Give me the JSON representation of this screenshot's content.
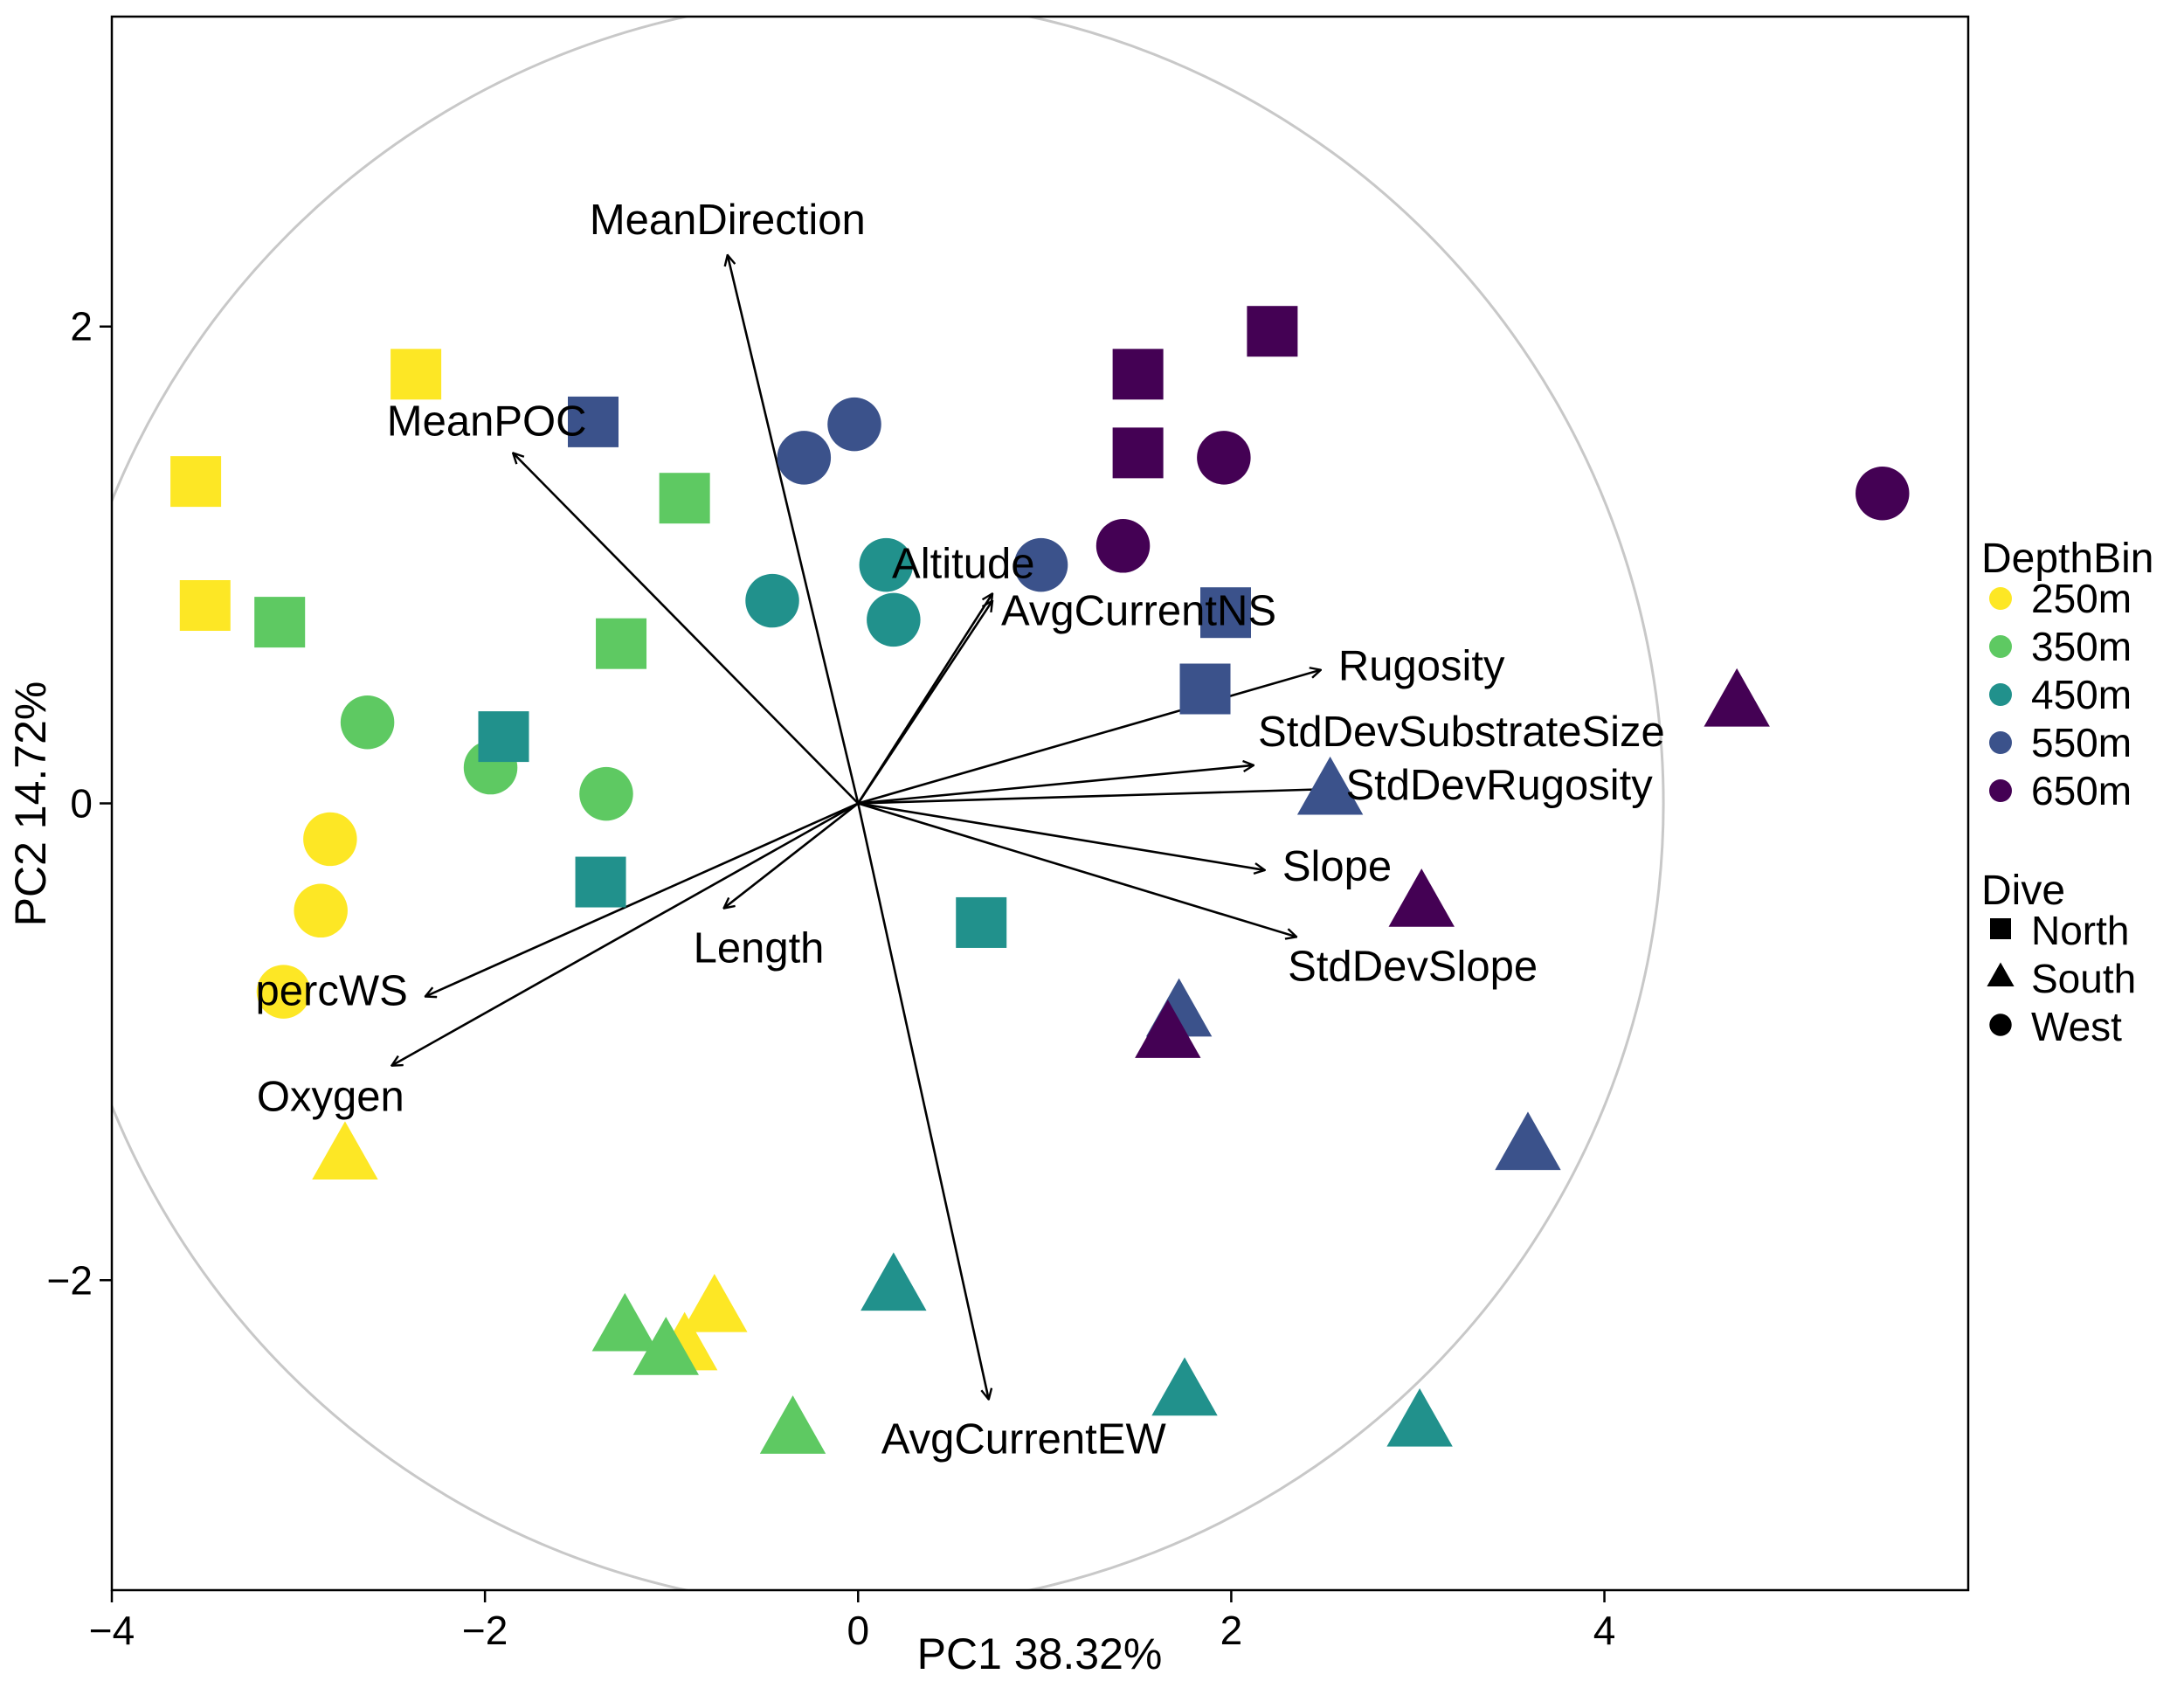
{
  "chart_data": {
    "type": "scatter",
    "subtype": "pca-biplot",
    "xlabel": "PC1 38.32%",
    "ylabel": "PC2 14.72%",
    "xlim": [
      -4,
      5.95
    ],
    "ylim": [
      -3.3,
      3.3
    ],
    "xticks": [
      -4,
      -2,
      0,
      2,
      4
    ],
    "yticks": [
      -2,
      0,
      2
    ],
    "grid": false,
    "circle_radius": 3.79,
    "legend": {
      "placement": "right",
      "color_title": "DepthBin",
      "color_entries": [
        {
          "label": "250m",
          "color": "#FDE725"
        },
        {
          "label": "350m",
          "color": "#5EC962"
        },
        {
          "label": "450m",
          "color": "#21918C"
        },
        {
          "label": "550m",
          "color": "#3B528B"
        },
        {
          "label": "650m",
          "color": "#440154"
        }
      ],
      "shape_title": "Dive",
      "shape_entries": [
        {
          "label": "North",
          "shape": "square"
        },
        {
          "label": "South",
          "shape": "triangle"
        },
        {
          "label": "West",
          "shape": "circle"
        }
      ]
    },
    "loadings": [
      {
        "name": "MeanDirection",
        "x": -0.7,
        "y": 2.3,
        "label_pos": "above"
      },
      {
        "name": "MeanPOC",
        "x": -1.85,
        "y": 1.47,
        "label_pos": "upper-left"
      },
      {
        "name": "Altitude",
        "x": 0.72,
        "y": 0.88,
        "label_pos": "tip"
      },
      {
        "name": "AvgCurrentNS",
        "x": 0.72,
        "y": 0.85,
        "label_pos": "tip-lower"
      },
      {
        "name": "Rugosity",
        "x": 2.48,
        "y": 0.56,
        "label_pos": "right"
      },
      {
        "name": "StdDevSubstrateSize",
        "x": 2.12,
        "y": 0.16,
        "label_pos": "upper-right"
      },
      {
        "name": "StdDevRugosity",
        "x": 2.52,
        "y": 0.06,
        "label_pos": "right"
      },
      {
        "name": "Slope",
        "x": 2.18,
        "y": -0.28,
        "label_pos": "right"
      },
      {
        "name": "StdDevSlope",
        "x": 2.35,
        "y": -0.56,
        "label_pos": "lower-right"
      },
      {
        "name": "Length",
        "x": -0.72,
        "y": -0.44,
        "label_pos": "below"
      },
      {
        "name": "percWS",
        "x": -2.32,
        "y": -0.81,
        "label_pos": "left"
      },
      {
        "name": "Oxygen",
        "x": -2.5,
        "y": -1.1,
        "label_pos": "below-left"
      },
      {
        "name": "AvgCurrentEW",
        "x": 0.7,
        "y": -2.5,
        "label_pos": "below"
      }
    ],
    "points": [
      {
        "x": -2.37,
        "y": 1.8,
        "depth": "250m",
        "dive": "North"
      },
      {
        "x": -3.55,
        "y": 1.35,
        "depth": "250m",
        "dive": "North"
      },
      {
        "x": -3.5,
        "y": 0.83,
        "depth": "250m",
        "dive": "North"
      },
      {
        "x": -2.83,
        "y": -0.15,
        "depth": "250m",
        "dive": "West"
      },
      {
        "x": -2.88,
        "y": -0.45,
        "depth": "250m",
        "dive": "West"
      },
      {
        "x": -3.08,
        "y": -0.79,
        "depth": "250m",
        "dive": "West"
      },
      {
        "x": -2.75,
        "y": -1.48,
        "depth": "250m",
        "dive": "South"
      },
      {
        "x": -0.93,
        "y": -2.28,
        "depth": "250m",
        "dive": "South"
      },
      {
        "x": -0.77,
        "y": -2.12,
        "depth": "250m",
        "dive": "South"
      },
      {
        "x": -0.93,
        "y": 1.28,
        "depth": "350m",
        "dive": "North"
      },
      {
        "x": -3.1,
        "y": 0.76,
        "depth": "350m",
        "dive": "North"
      },
      {
        "x": -1.27,
        "y": 0.67,
        "depth": "350m",
        "dive": "North"
      },
      {
        "x": -2.63,
        "y": 0.34,
        "depth": "350m",
        "dive": "West"
      },
      {
        "x": -1.97,
        "y": 0.15,
        "depth": "350m",
        "dive": "West"
      },
      {
        "x": -1.35,
        "y": 0.04,
        "depth": "350m",
        "dive": "West"
      },
      {
        "x": -1.25,
        "y": -2.2,
        "depth": "350m",
        "dive": "South"
      },
      {
        "x": -1.03,
        "y": -2.3,
        "depth": "350m",
        "dive": "South"
      },
      {
        "x": -0.35,
        "y": -2.63,
        "depth": "350m",
        "dive": "South"
      },
      {
        "x": -1.9,
        "y": 0.28,
        "depth": "450m",
        "dive": "North"
      },
      {
        "x": -1.38,
        "y": -0.33,
        "depth": "450m",
        "dive": "North"
      },
      {
        "x": 0.66,
        "y": -0.5,
        "depth": "450m",
        "dive": "North"
      },
      {
        "x": 0.15,
        "y": 1.0,
        "depth": "450m",
        "dive": "West"
      },
      {
        "x": -0.46,
        "y": 0.85,
        "depth": "450m",
        "dive": "West"
      },
      {
        "x": 0.19,
        "y": 0.77,
        "depth": "450m",
        "dive": "West"
      },
      {
        "x": 0.19,
        "y": -2.03,
        "depth": "450m",
        "dive": "South"
      },
      {
        "x": 1.75,
        "y": -2.47,
        "depth": "450m",
        "dive": "South"
      },
      {
        "x": 3.01,
        "y": -2.6,
        "depth": "450m",
        "dive": "South"
      },
      {
        "x": -1.42,
        "y": 1.6,
        "depth": "550m",
        "dive": "North"
      },
      {
        "x": 1.97,
        "y": 0.8,
        "depth": "550m",
        "dive": "North"
      },
      {
        "x": 1.86,
        "y": 0.48,
        "depth": "550m",
        "dive": "North"
      },
      {
        "x": -0.29,
        "y": 1.45,
        "depth": "550m",
        "dive": "West"
      },
      {
        "x": -0.02,
        "y": 1.59,
        "depth": "550m",
        "dive": "West"
      },
      {
        "x": 0.98,
        "y": 1.0,
        "depth": "550m",
        "dive": "West"
      },
      {
        "x": 2.53,
        "y": 0.05,
        "depth": "550m",
        "dive": "South"
      },
      {
        "x": 1.72,
        "y": -0.88,
        "depth": "550m",
        "dive": "South"
      },
      {
        "x": 3.59,
        "y": -1.44,
        "depth": "550m",
        "dive": "South"
      },
      {
        "x": 1.5,
        "y": 1.8,
        "depth": "650m",
        "dive": "North"
      },
      {
        "x": 1.5,
        "y": 1.47,
        "depth": "650m",
        "dive": "North"
      },
      {
        "x": 2.22,
        "y": 1.98,
        "depth": "650m",
        "dive": "North"
      },
      {
        "x": 1.96,
        "y": 1.45,
        "depth": "650m",
        "dive": "West"
      },
      {
        "x": 1.42,
        "y": 1.08,
        "depth": "650m",
        "dive": "West"
      },
      {
        "x": 5.49,
        "y": 1.3,
        "depth": "650m",
        "dive": "West"
      },
      {
        "x": 4.71,
        "y": 0.42,
        "depth": "650m",
        "dive": "South"
      },
      {
        "x": 3.02,
        "y": -0.42,
        "depth": "650m",
        "dive": "South"
      },
      {
        "x": 1.66,
        "y": -0.97,
        "depth": "650m",
        "dive": "South"
      }
    ]
  }
}
